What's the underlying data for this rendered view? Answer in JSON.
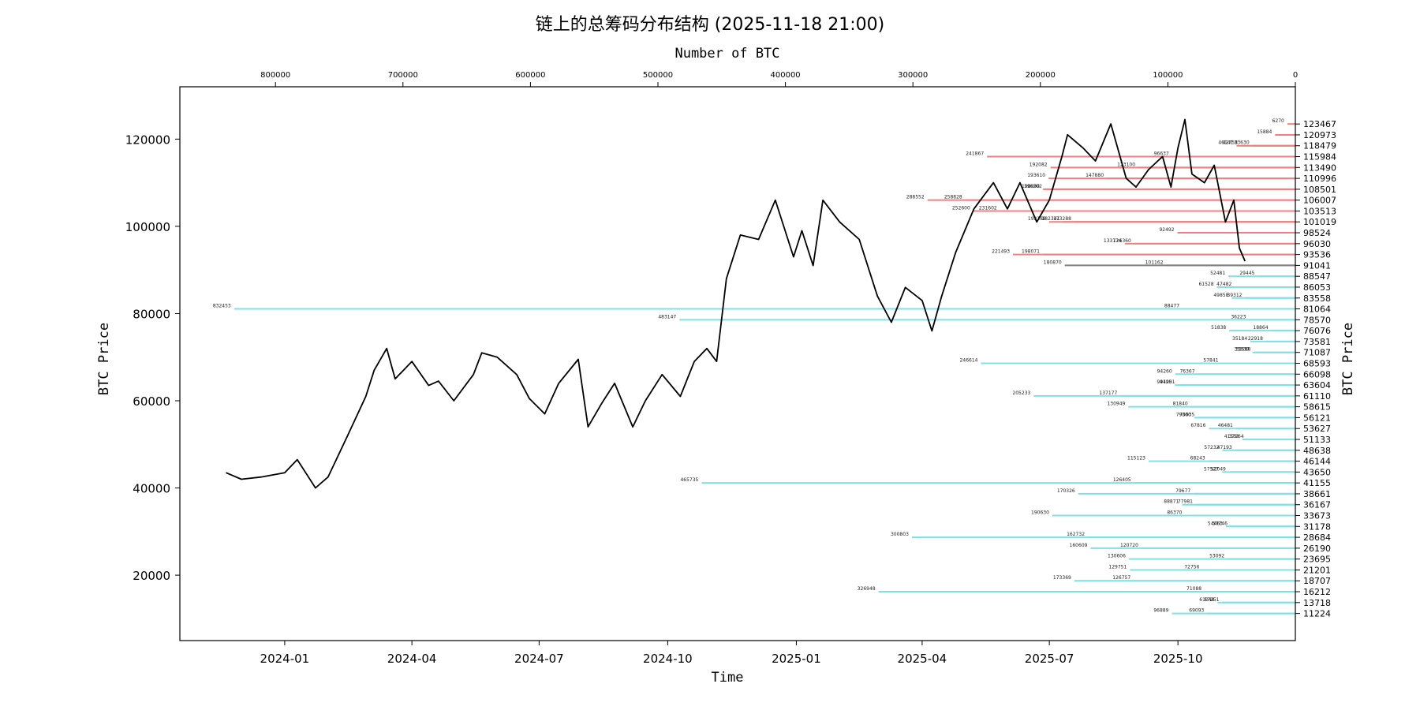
{
  "chart_data": {
    "type": "line",
    "title": "链上的总筹码分布结构 (2025-11-18 21:00)",
    "xlabel": "Time",
    "ylabel": "BTC Price",
    "ylabel_right": "BTC Price",
    "xlabel_top": "Number of BTC",
    "x_ticks": [
      "2024-01",
      "2024-04",
      "2024-07",
      "2024-10",
      "2025-01",
      "2025-04",
      "2025-07",
      "2025-10"
    ],
    "y_ticks": [
      20000,
      40000,
      60000,
      80000,
      100000,
      120000
    ],
    "ylim": [
      5000,
      132000
    ],
    "top_axis": {
      "ticks": [
        800000,
        700000,
        600000,
        500000,
        400000,
        300000,
        200000,
        100000,
        0
      ],
      "range": [
        875000,
        0
      ]
    },
    "series": [
      {
        "color": "#000000",
        "x": [
          "2023-11-20",
          "2023-12-01",
          "2023-12-15",
          "2024-01-01",
          "2024-01-10",
          "2024-01-23",
          "2024-02-01",
          "2024-02-15",
          "2024-02-28",
          "2024-03-05",
          "2024-03-14",
          "2024-03-20",
          "2024-04-01",
          "2024-04-13",
          "2024-04-20",
          "2024-05-01",
          "2024-05-15",
          "2024-05-21",
          "2024-06-01",
          "2024-06-15",
          "2024-06-24",
          "2024-07-05",
          "2024-07-15",
          "2024-07-29",
          "2024-08-05",
          "2024-08-15",
          "2024-08-24",
          "2024-09-06",
          "2024-09-15",
          "2024-09-27",
          "2024-10-10",
          "2024-10-20",
          "2024-10-29",
          "2024-11-05",
          "2024-11-12",
          "2024-11-22",
          "2024-12-05",
          "2024-12-17",
          "2024-12-30",
          "2025-01-05",
          "2025-01-13",
          "2025-01-20",
          "2025-02-01",
          "2025-02-15",
          "2025-02-28",
          "2025-03-10",
          "2025-03-20",
          "2025-04-01",
          "2025-04-08",
          "2025-04-15",
          "2025-04-25",
          "2025-05-08",
          "2025-05-22",
          "2025-06-01",
          "2025-06-10",
          "2025-06-22",
          "2025-07-01",
          "2025-07-10",
          "2025-07-14",
          "2025-07-25",
          "2025-08-03",
          "2025-08-14",
          "2025-08-25",
          "2025-09-01",
          "2025-09-10",
          "2025-09-20",
          "2025-09-26",
          "2025-10-01",
          "2025-10-06",
          "2025-10-11",
          "2025-10-20",
          "2025-10-27",
          "2025-11-04",
          "2025-11-10",
          "2025-11-14",
          "2025-11-18"
        ],
        "values": [
          43500,
          42000,
          42500,
          43500,
          46500,
          40000,
          42500,
          52000,
          61000,
          67000,
          72000,
          65000,
          69000,
          63500,
          64500,
          60000,
          66000,
          71000,
          70000,
          66000,
          60500,
          57000,
          64000,
          69500,
          54000,
          59500,
          64000,
          54000,
          60000,
          66000,
          61000,
          69000,
          72000,
          69000,
          88000,
          98000,
          97000,
          106000,
          93000,
          99000,
          91000,
          106000,
          101000,
          97000,
          84000,
          78000,
          86000,
          83000,
          76000,
          84000,
          94000,
          104000,
          110000,
          104000,
          110000,
          101000,
          106000,
          116000,
          121000,
          118000,
          115000,
          123500,
          111000,
          109000,
          113000,
          116000,
          109000,
          118000,
          124500,
          112000,
          110000,
          114000,
          101000,
          106000,
          95000,
          92000
        ]
      }
    ],
    "distribution": {
      "current_price": 91041,
      "color_above": "#f08080",
      "color_below": "#7fe0e6",
      "color_current": "#808080",
      "levels": [
        {
          "price": 123467,
          "btc": 6270
        },
        {
          "price": 120973,
          "btc": 15884
        },
        {
          "price": 118479,
          "btc": 33630
        },
        {
          "price": 118479,
          "btc": 42758
        },
        {
          "price": 118479,
          "btc": 46141
        },
        {
          "price": 115984,
          "btc": 96637
        },
        {
          "price": 115984,
          "btc": 241867
        },
        {
          "price": 113490,
          "btc": 123100
        },
        {
          "price": 113490,
          "btc": 192082
        },
        {
          "price": 110996,
          "btc": 147880
        },
        {
          "price": 110996,
          "btc": 193610
        },
        {
          "price": 108501,
          "btc": 198090
        },
        {
          "price": 108501,
          "btc": 196202
        },
        {
          "price": 106007,
          "btc": 258828
        },
        {
          "price": 106007,
          "btc": 288552
        },
        {
          "price": 103513,
          "btc": 252600
        },
        {
          "price": 103513,
          "btc": 231602
        },
        {
          "price": 101019,
          "btc": 173288
        },
        {
          "price": 101019,
          "btc": 182341
        },
        {
          "price": 101019,
          "btc": 193188
        },
        {
          "price": 98524,
          "btc": 92492
        },
        {
          "price": 96030,
          "btc": 126360
        },
        {
          "price": 96030,
          "btc": 133774
        },
        {
          "price": 93536,
          "btc": 198071
        },
        {
          "price": 93536,
          "btc": 221493
        },
        {
          "price": 91041,
          "btc": 180870
        },
        {
          "price": 91041,
          "btc": 101162
        },
        {
          "price": 88547,
          "btc": 52481
        },
        {
          "price": 88547,
          "btc": 29445
        },
        {
          "price": 86053,
          "btc": 47482
        },
        {
          "price": 86053,
          "btc": 61528
        },
        {
          "price": 83558,
          "btc": 49858
        },
        {
          "price": 83558,
          "btc": 39312
        },
        {
          "price": 81064,
          "btc": 88477
        },
        {
          "price": 81064,
          "btc": 832453
        },
        {
          "price": 78570,
          "btc": 36223
        },
        {
          "price": 78570,
          "btc": 483147
        },
        {
          "price": 76076,
          "btc": 51838
        },
        {
          "price": 76076,
          "btc": 18864
        },
        {
          "price": 73581,
          "btc": 22918
        },
        {
          "price": 73581,
          "btc": 35184
        },
        {
          "price": 71087,
          "btc": 32588
        },
        {
          "price": 71087,
          "btc": 33639
        },
        {
          "price": 68593,
          "btc": 57841
        },
        {
          "price": 68593,
          "btc": 246614
        },
        {
          "price": 66098,
          "btc": 76367
        },
        {
          "price": 66098,
          "btc": 94260
        },
        {
          "price": 63604,
          "btc": 94425
        },
        {
          "price": 63604,
          "btc": 91901
        },
        {
          "price": 61110,
          "btc": 205233
        },
        {
          "price": 61110,
          "btc": 137177
        },
        {
          "price": 58615,
          "btc": 130949
        },
        {
          "price": 58615,
          "btc": 81840
        },
        {
          "price": 56121,
          "btc": 79300
        },
        {
          "price": 56121,
          "btc": 76635
        },
        {
          "price": 53627,
          "btc": 46481
        },
        {
          "price": 53627,
          "btc": 67816
        },
        {
          "price": 51133,
          "btc": 37964
        },
        {
          "price": 51133,
          "btc": 41553
        },
        {
          "price": 48638,
          "btc": 47193
        },
        {
          "price": 48638,
          "btc": 57232
        },
        {
          "price": 46144,
          "btc": 68243
        },
        {
          "price": 46144,
          "btc": 115123
        },
        {
          "price": 43650,
          "btc": 52049
        },
        {
          "price": 43650,
          "btc": 57527
        },
        {
          "price": 41155,
          "btc": 126405
        },
        {
          "price": 41155,
          "btc": 465735
        },
        {
          "price": 38661,
          "btc": 79677
        },
        {
          "price": 38661,
          "btc": 170326
        },
        {
          "price": 36167,
          "btc": 77981
        },
        {
          "price": 36167,
          "btc": 88871
        },
        {
          "price": 33673,
          "btc": 190630
        },
        {
          "price": 33673,
          "btc": 86370
        },
        {
          "price": 31178,
          "btc": 50746
        },
        {
          "price": 31178,
          "btc": 54463
        },
        {
          "price": 28684,
          "btc": 300803
        },
        {
          "price": 28684,
          "btc": 162732
        },
        {
          "price": 26190,
          "btc": 120720
        },
        {
          "price": 26190,
          "btc": 160609
        },
        {
          "price": 23695,
          "btc": 130606
        },
        {
          "price": 23695,
          "btc": 53092
        },
        {
          "price": 21201,
          "btc": 129751
        },
        {
          "price": 21201,
          "btc": 72756
        },
        {
          "price": 18707,
          "btc": 126757
        },
        {
          "price": 18707,
          "btc": 173369
        },
        {
          "price": 16212,
          "btc": 71088
        },
        {
          "price": 16212,
          "btc": 326948
        },
        {
          "price": 13718,
          "btc": 61048
        },
        {
          "price": 13718,
          "btc": 57251
        },
        {
          "price": 11224,
          "btc": 69093
        },
        {
          "price": 11224,
          "btc": 96889
        }
      ]
    }
  }
}
